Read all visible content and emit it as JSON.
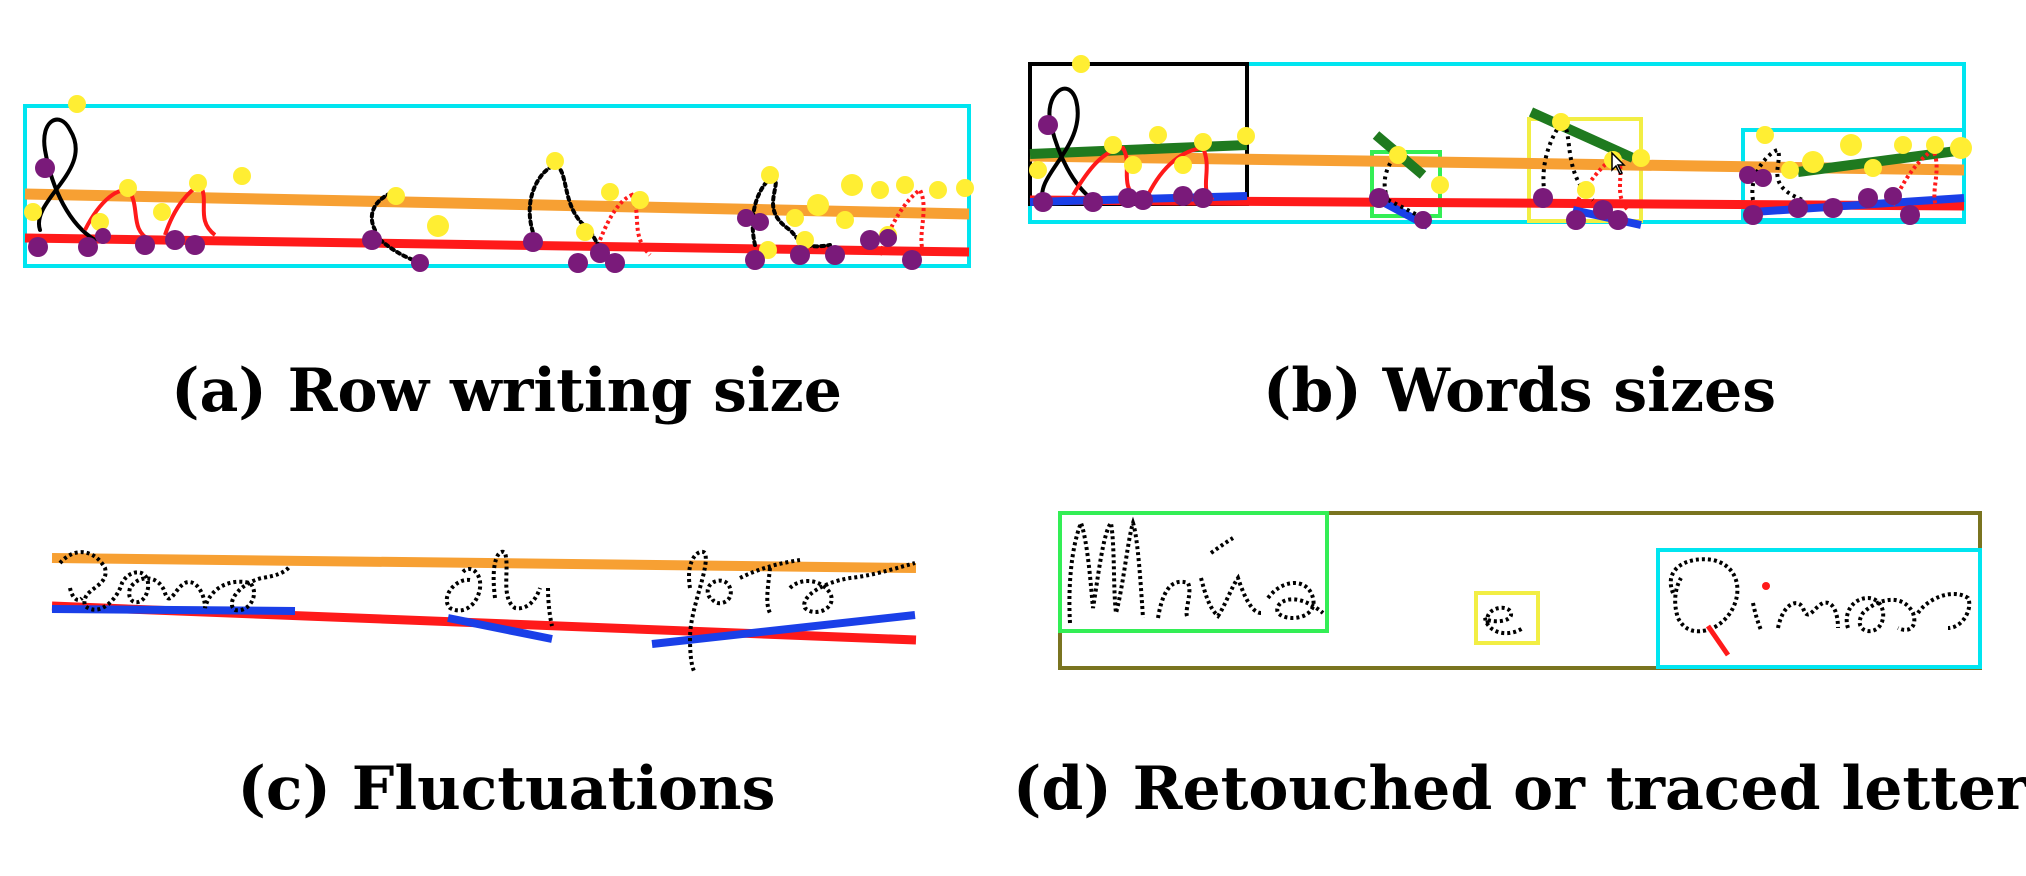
{
  "figure": {
    "panels": [
      {
        "id": "a",
        "caption": "(a) Row writing size"
      },
      {
        "id": "b",
        "caption": "(b) Words sizes"
      },
      {
        "id": "c",
        "caption": "(c) Fluctuations"
      },
      {
        "id": "d",
        "caption": "(d) Retouched or traced letters"
      }
    ]
  },
  "colors": {
    "row_box": "#00e5f0",
    "upper_line": "#f7a033",
    "baseline": "#ff1a1a",
    "word_baseline": "#1a3fe8",
    "slant_line": "#1f7a1f",
    "ink": "#000000",
    "point_top": "#ffee33",
    "point_bottom": "#7a1a7a",
    "stroke_curve": "#ff1a1a",
    "box_black": "#000000",
    "box_green": "#33ee55",
    "box_yellow": "#f2ee44",
    "box_olive": "#7a7420",
    "box_cyan": "#00e5f0"
  }
}
